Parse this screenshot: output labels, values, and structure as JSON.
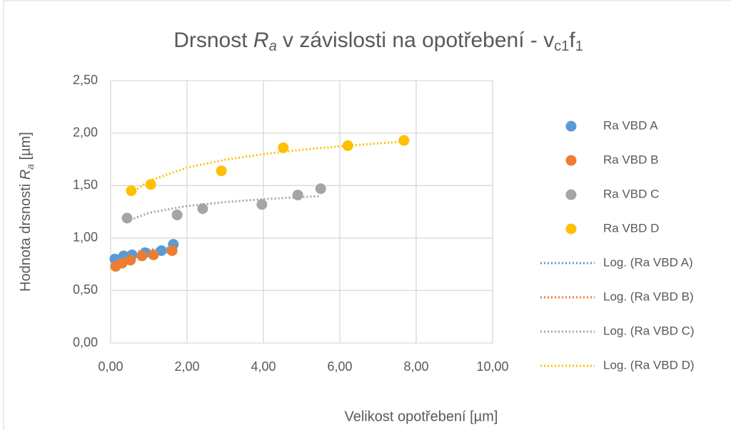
{
  "chart_data": {
    "type": "scatter",
    "title_parts": [
      "Drsnost ",
      "R",
      "a",
      " v závislosti na opotřebení - v",
      "c1",
      "f",
      "1"
    ],
    "ylabel_parts": [
      "Hodnota drsnosti ",
      "R",
      "a",
      " [µm]"
    ],
    "xlabel": "Velikost opotřebení [µm]",
    "xlim": [
      0,
      10
    ],
    "xticks": [
      {
        "value": 0,
        "label": "0,00"
      },
      {
        "value": 2,
        "label": "2,00"
      },
      {
        "value": 4,
        "label": "4,00"
      },
      {
        "value": 6,
        "label": "6,00"
      },
      {
        "value": 8,
        "label": "8,00"
      },
      {
        "value": 10,
        "label": "10,00"
      }
    ],
    "ylim": [
      0,
      2.5
    ],
    "yticks": [
      {
        "value": 0,
        "label": "0,00"
      },
      {
        "value": 0.5,
        "label": "0,50"
      },
      {
        "value": 1,
        "label": "1,00"
      },
      {
        "value": 1.5,
        "label": "1,50"
      },
      {
        "value": 2,
        "label": "2,00"
      },
      {
        "value": 2.5,
        "label": "2,50"
      }
    ],
    "grid": true,
    "legend": "right",
    "series": [
      {
        "name": "Ra VBD A",
        "style": "markers",
        "color": "#5b9bd5",
        "x": [
          0.11,
          0.34,
          0.56,
          0.9,
          1.33,
          1.64
        ],
        "values": [
          0.8,
          0.83,
          0.84,
          0.86,
          0.88,
          0.94
        ]
      },
      {
        "name": "Ra VBD B",
        "style": "markers",
        "color": "#ed7d31",
        "x": [
          0.13,
          0.3,
          0.52,
          0.82,
          1.12,
          1.61
        ],
        "values": [
          0.73,
          0.76,
          0.79,
          0.83,
          0.84,
          0.88
        ]
      },
      {
        "name": "Ra VBD C",
        "style": "markers",
        "color": "#a5a5a5",
        "x": [
          0.43,
          1.74,
          2.41,
          3.96,
          4.9,
          5.5
        ],
        "values": [
          1.19,
          1.22,
          1.28,
          1.32,
          1.41,
          1.47
        ]
      },
      {
        "name": "Ra VBD D",
        "style": "markers",
        "color": "#ffc000",
        "x": [
          0.54,
          1.05,
          2.9,
          4.52,
          6.21,
          7.68
        ],
        "values": [
          1.45,
          1.51,
          1.64,
          1.86,
          1.88,
          1.93
        ]
      },
      {
        "name": "Log. (Ra VBD A)",
        "style": "dotted",
        "color": "#5b9bd5",
        "x": [
          0.11,
          0.5,
          1,
          1.64
        ],
        "values": [
          0.791,
          0.858,
          0.888,
          0.91
        ]
      },
      {
        "name": "Log. (Ra VBD B)",
        "style": "dotted",
        "color": "#ed7d31",
        "x": [
          0.13,
          0.5,
          1,
          1.61
        ],
        "values": [
          0.729,
          0.804,
          0.843,
          0.87
        ]
      },
      {
        "name": "Log. (Ra VBD C)",
        "style": "dotted",
        "color": "#a5a5a5",
        "x": [
          0.43,
          1,
          2,
          3,
          4,
          5.5
        ],
        "values": [
          1.161,
          1.24,
          1.305,
          1.343,
          1.37,
          1.4
        ]
      },
      {
        "name": "Log. (Ra VBD D)",
        "style": "dotted",
        "color": "#ffc000",
        "x": [
          0.54,
          1,
          2,
          3,
          4,
          5,
          6,
          7.68
        ],
        "values": [
          1.429,
          1.543,
          1.671,
          1.746,
          1.799,
          1.841,
          1.874,
          1.92
        ]
      }
    ]
  }
}
